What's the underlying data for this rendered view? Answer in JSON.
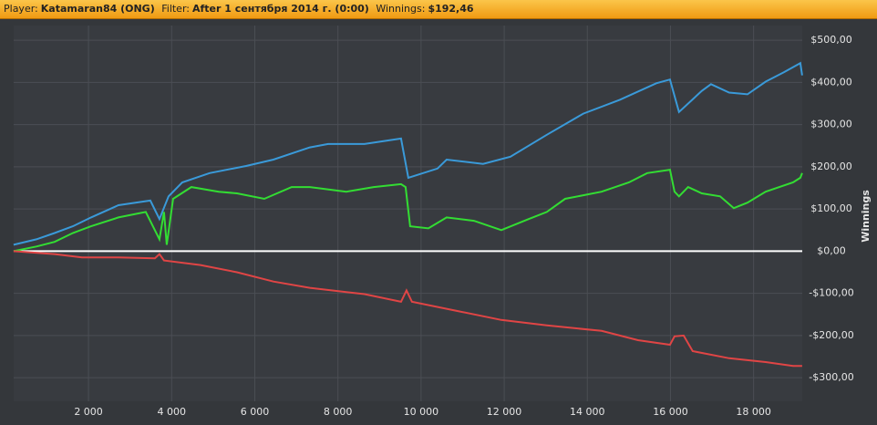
{
  "header": {
    "player_label": "Player:",
    "player": "Katamaran84 (ONG)",
    "filter_label": "Filter:",
    "filter": "After 1 сентября 2014 г. (0:00)",
    "winnings_label": "Winnings:",
    "winnings": "$192,46"
  },
  "chart_data": {
    "type": "line",
    "y_axis_label": "Winnings",
    "xlim": [
      200,
      19170
    ],
    "ylim": [
      -356,
      535
    ],
    "xticks": [
      {
        "value": 2000,
        "label": "2 000"
      },
      {
        "value": 4000,
        "label": "4 000"
      },
      {
        "value": 6000,
        "label": "6 000"
      },
      {
        "value": 8000,
        "label": "8 000"
      },
      {
        "value": 10000,
        "label": "10 000"
      },
      {
        "value": 12000,
        "label": "12 000"
      },
      {
        "value": 14000,
        "label": "14 000"
      },
      {
        "value": 16000,
        "label": "16 000"
      },
      {
        "value": 18000,
        "label": "18 000"
      }
    ],
    "yticks": [
      {
        "value": 500,
        "label": "$500,00"
      },
      {
        "value": 400,
        "label": "$400,00"
      },
      {
        "value": 300,
        "label": "$300,00"
      },
      {
        "value": 200,
        "label": "$200,00"
      },
      {
        "value": 100,
        "label": "$100,00"
      },
      {
        "value": 0,
        "label": "$0,00"
      },
      {
        "value": -100,
        "label": "-$100,00"
      },
      {
        "value": -200,
        "label": "-$200,00"
      },
      {
        "value": -300,
        "label": "-$300,00"
      }
    ],
    "grid": true,
    "series": [
      {
        "color": "#3a9ad9",
        "x": [
          197,
          746,
          1184,
          1623,
          2061,
          2719,
          3487,
          3706,
          3925,
          4254,
          4912,
          5790,
          6447,
          7325,
          7763,
          8640,
          9518,
          9693,
          10395,
          10614,
          11491,
          12149,
          13026,
          13903,
          14781,
          15658,
          15987,
          16206,
          16754,
          16974,
          17412,
          17851,
          18290,
          18728,
          19123,
          19167
        ],
        "values": [
          15,
          28,
          43,
          59,
          80,
          109,
          120,
          76,
          130,
          163,
          185,
          202,
          217,
          246,
          254,
          254,
          267,
          174,
          196,
          217,
          207,
          224,
          276,
          326,
          359,
          398,
          407,
          330,
          380,
          396,
          376,
          372,
          402,
          424,
          446,
          417
        ]
      },
      {
        "color": "#33dd33",
        "x": [
          197,
          746,
          1184,
          1623,
          2061,
          2719,
          3377,
          3706,
          3816,
          3882,
          4035,
          4474,
          5132,
          5570,
          6228,
          6886,
          7325,
          8202,
          8860,
          9518,
          9627,
          9737,
          10176,
          10614,
          11272,
          11930,
          12588,
          13026,
          13465,
          14342,
          15000,
          15439,
          15987,
          16097,
          16206,
          16425,
          16754,
          17193,
          17522,
          17851,
          18290,
          18948,
          19123,
          19167
        ],
        "values": [
          0,
          11,
          22,
          43,
          59,
          80,
          93,
          28,
          93,
          15,
          124,
          152,
          141,
          137,
          124,
          152,
          152,
          141,
          152,
          159,
          152,
          59,
          54,
          80,
          72,
          50,
          76,
          93,
          124,
          141,
          163,
          185,
          193,
          141,
          130,
          152,
          137,
          130,
          102,
          115,
          141,
          163,
          174,
          185
        ]
      },
      {
        "color": "#e04545",
        "x": [
          197,
          1184,
          1842,
          2719,
          3597,
          3706,
          3816,
          4693,
          5570,
          6447,
          7325,
          8640,
          9518,
          9649,
          9781,
          10833,
          11930,
          13026,
          14342,
          15219,
          15987,
          16097,
          16316,
          16535,
          17412,
          18290,
          18948,
          19167
        ],
        "values": [
          0,
          -7,
          -15,
          -15,
          -17,
          -7,
          -22,
          -33,
          -50,
          -72,
          -87,
          -102,
          -120,
          -93,
          -120,
          -141,
          -163,
          -176,
          -189,
          -211,
          -222,
          -202,
          -200,
          -237,
          -254,
          -263,
          -272,
          -272
        ]
      }
    ]
  }
}
